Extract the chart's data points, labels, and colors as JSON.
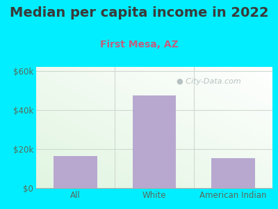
{
  "title": "Median per capita income in 2022",
  "subtitle": "First Mesa, AZ",
  "categories": [
    "All",
    "White",
    "American Indian"
  ],
  "values": [
    16500,
    47500,
    15500
  ],
  "bar_color": "#b8a8d0",
  "title_color": "#3a3a3a",
  "subtitle_color": "#c06080",
  "axis_label_color": "#5a6a5a",
  "tick_label_color": "#5a6a5a",
  "background_color": "#00eeff",
  "plot_bg_color_topleft": "#e8f5e0",
  "plot_bg_color_topright": "#f0f5f5",
  "plot_bg_color_bottomleft": "#d8eec8",
  "plot_bg_color_bottomright": "#e8f0f0",
  "ylim": [
    0,
    62000
  ],
  "yticks": [
    0,
    20000,
    40000,
    60000
  ],
  "ytick_labels": [
    "$0",
    "$20k",
    "$40k",
    "$60k"
  ],
  "watermark": "City-Data.com",
  "title_fontsize": 14,
  "subtitle_fontsize": 10,
  "tick_fontsize": 8.5,
  "grid_color": "#d0d8d0",
  "spine_color": "#aaaaaa"
}
